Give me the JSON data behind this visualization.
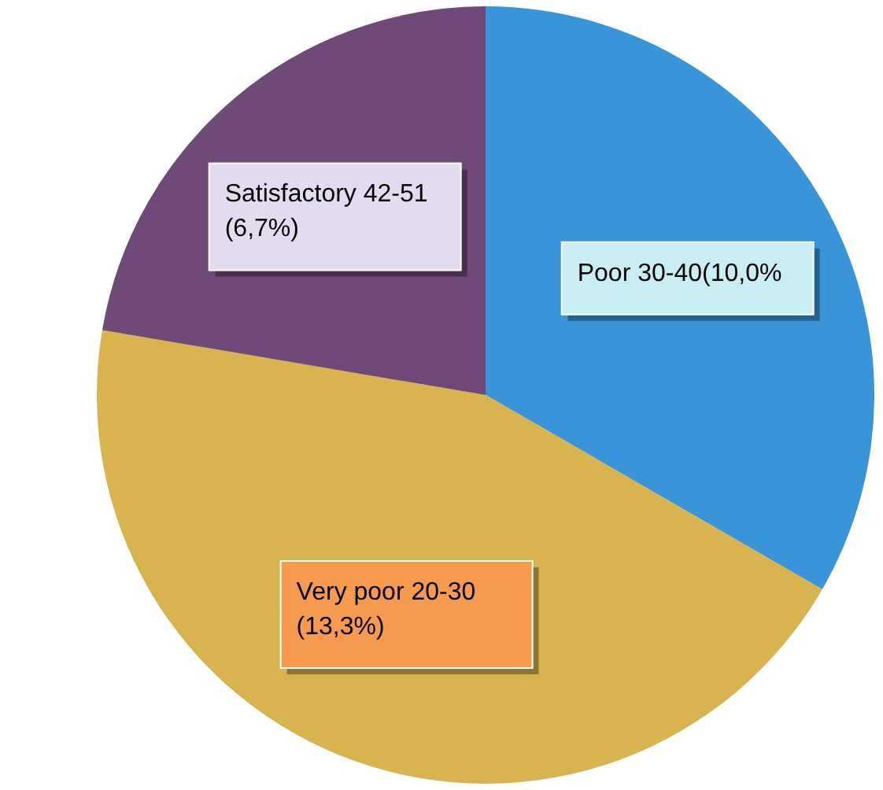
{
  "chart_data": {
    "type": "pie",
    "categories": [
      "Poor 30-40(10,0%",
      "Very poor 20-30 (13,3%)",
      "Satisfactory 42-51 (6,7%)"
    ],
    "values": [
      10.0,
      13.3,
      6.7
    ],
    "colors": [
      "#3a95d8",
      "#d8b450",
      "#6f4a78"
    ],
    "legend": false
  }
}
